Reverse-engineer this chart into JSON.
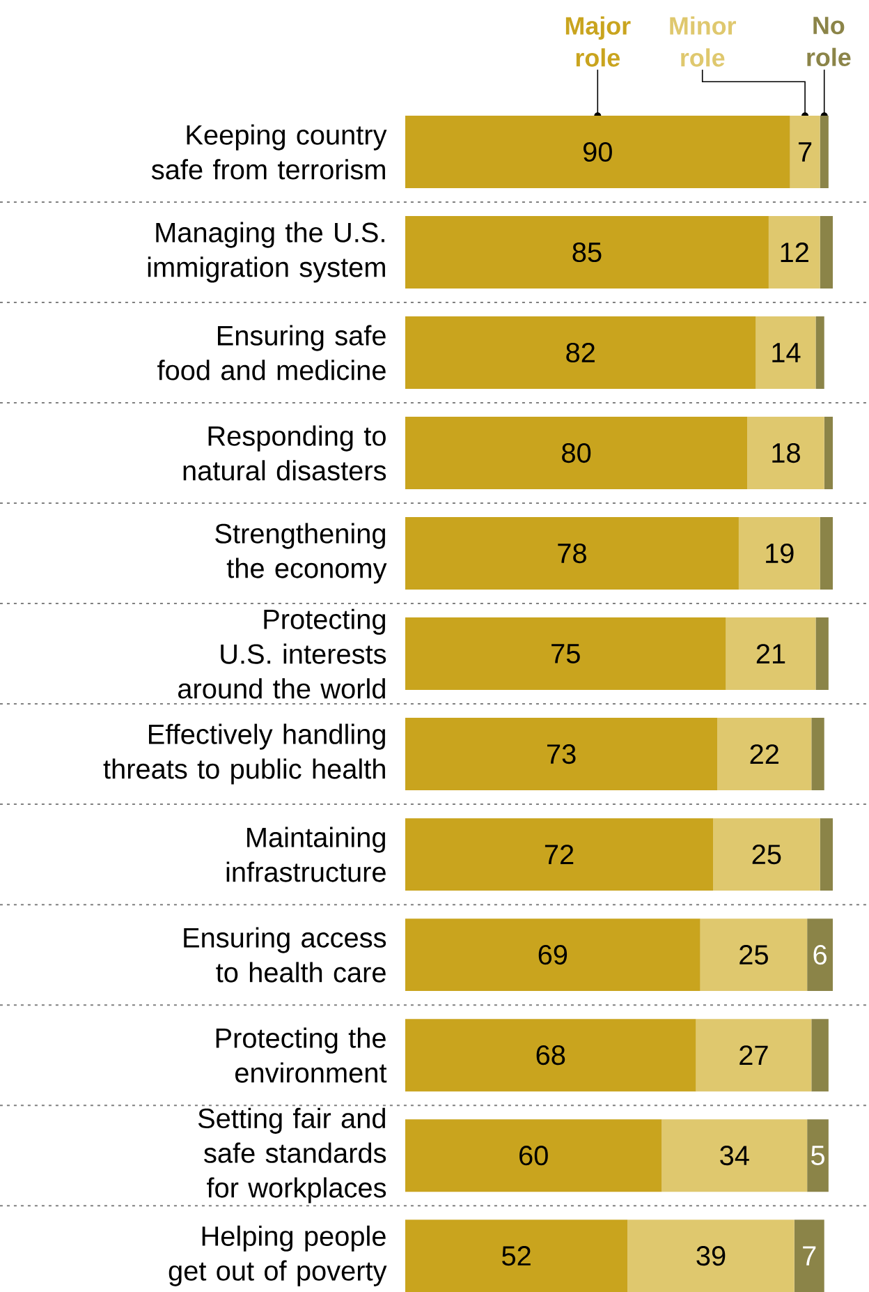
{
  "chart_data": {
    "type": "bar",
    "orientation": "horizontal",
    "stacked": true,
    "legend": "top",
    "categories": [
      "Keeping country safe from terrorism",
      "Managing the U.S. immigration system",
      "Ensuring safe food and medicine",
      "Responding to natural disasters",
      "Strengthening the economy",
      "Protecting U.S. interests around the world",
      "Effectively handling threats to public health",
      "Maintaining infrastructure",
      "Ensuring access to health care",
      "Protecting the environment",
      "Setting fair and safe standards for workplaces",
      "Helping people get out of poverty"
    ],
    "series": [
      {
        "name": "Major role",
        "color": "#c9a41e",
        "values": [
          90,
          85,
          82,
          80,
          78,
          75,
          73,
          72,
          69,
          68,
          60,
          52
        ],
        "value_labels": [
          "90",
          "85",
          "82",
          "80",
          "78",
          "75",
          "73",
          "72",
          "69",
          "68",
          "60",
          "52"
        ]
      },
      {
        "name": "Minor role",
        "color": "#dfc86e",
        "values": [
          7,
          12,
          14,
          18,
          19,
          21,
          22,
          25,
          25,
          27,
          34,
          39
        ],
        "value_labels": [
          "7",
          "12",
          "14",
          "18",
          "19",
          "21",
          "22",
          "25",
          "25",
          "27",
          "34",
          "39"
        ]
      },
      {
        "name": "No role",
        "color": "#8b8448",
        "values": [
          2,
          3,
          2,
          2,
          3,
          3,
          3,
          3,
          6,
          4,
          5,
          7
        ],
        "value_labels": [
          null,
          null,
          null,
          null,
          null,
          null,
          null,
          null,
          "6",
          null,
          "5",
          "7"
        ]
      }
    ]
  }
}
